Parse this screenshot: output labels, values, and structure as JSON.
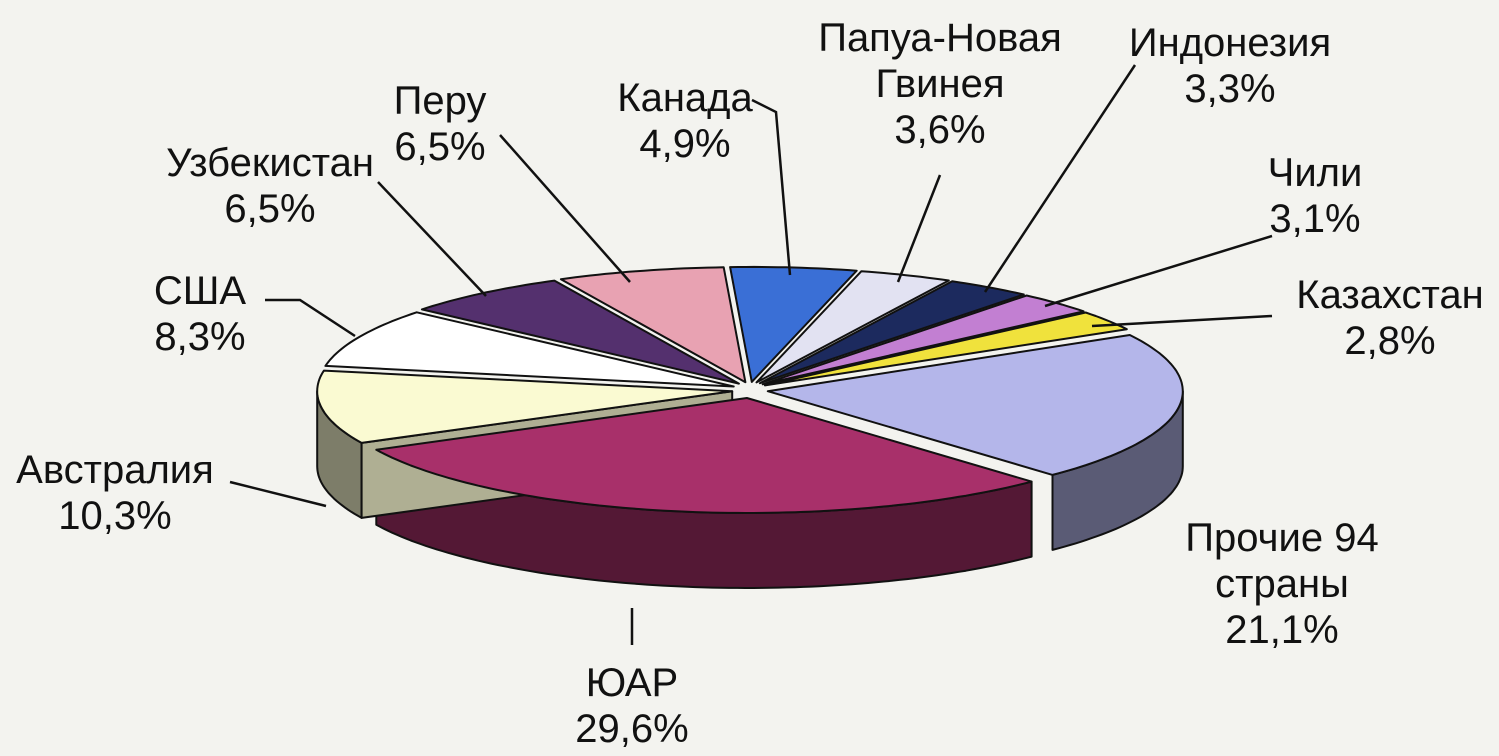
{
  "chart_data": {
    "type": "pie",
    "categories": [
      "Канада",
      "Папуа-Новая Гвинея",
      "Индонезия",
      "Чили",
      "Казахстан",
      "Прочие 94 страны",
      "ЮАР",
      "Австралия",
      "США",
      "Узбекистан",
      "Перу"
    ],
    "values": [
      4.9,
      3.6,
      3.3,
      3.1,
      2.8,
      21.1,
      29.6,
      10.3,
      8.3,
      6.5,
      6.5
    ],
    "value_labels": [
      "4,9%",
      "3,6%",
      "3,3%",
      "3,1%",
      "2,8%",
      "21,1%",
      "29,6%",
      "10,3%",
      "8,3%",
      "6,5%",
      "6,5%"
    ],
    "colors": [
      "#3a6fd6",
      "#e2e2f2",
      "#1c2a5e",
      "#c27fd2",
      "#f0e23c",
      "#b4b6ea",
      "#a8306a",
      "#fafad2",
      "#ffffff",
      "#54306e",
      "#e8a2b2"
    ]
  }
}
